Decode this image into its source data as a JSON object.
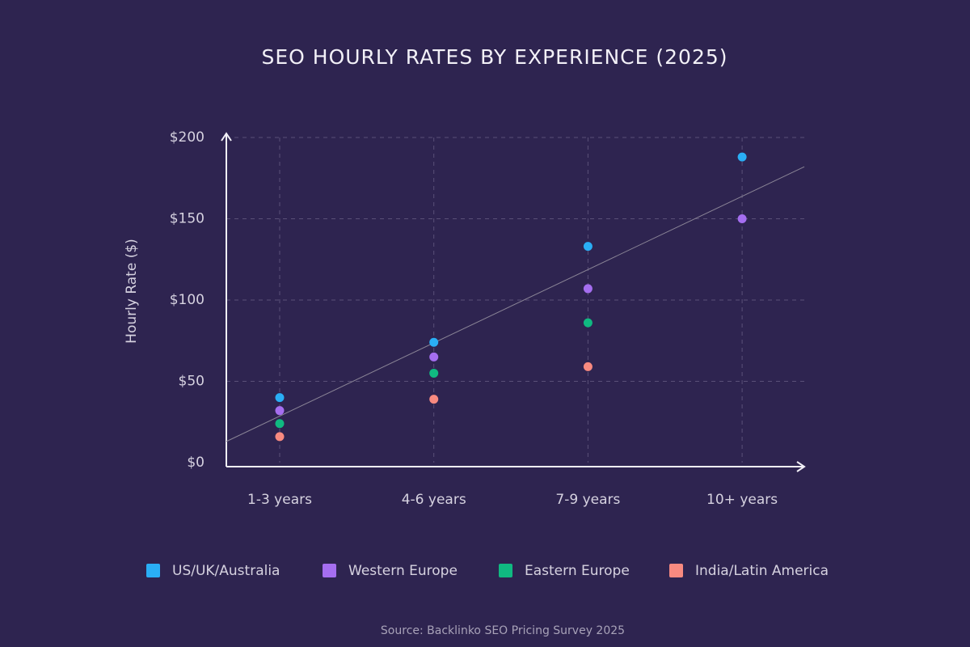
{
  "chart_data": {
    "type": "scatter",
    "title": "SEO HOURLY RATES BY EXPERIENCE (2025)",
    "y_label": "Hourly Rate ($)",
    "source": "Source: Backlinko SEO Pricing Survey 2025",
    "categories": [
      "1-3 years",
      "4-6 years",
      "7-9 years",
      "10+ years"
    ],
    "series": [
      {
        "name": "US/UK/Australia",
        "color": "#2aaef5",
        "values": [
          40,
          74,
          133,
          188
        ]
      },
      {
        "name": "Western Europe",
        "color": "#a56ef0",
        "values": [
          32,
          65,
          107,
          150
        ]
      },
      {
        "name": "Eastern Europe",
        "color": "#10b981",
        "values": [
          24,
          55,
          86,
          null
        ]
      },
      {
        "name": "India/Latin America",
        "color": "#f88a80",
        "values": [
          16,
          39,
          59,
          null
        ]
      }
    ],
    "trend_line": {
      "color": "#8a8496",
      "values": [
        13,
        182
      ]
    },
    "ylim": [
      0,
      200
    ],
    "yticks": [
      {
        "value": 0,
        "label": "$0"
      },
      {
        "value": 50,
        "label": "$50"
      },
      {
        "value": 100,
        "label": "$100"
      },
      {
        "value": 150,
        "label": "$150"
      },
      {
        "value": 200,
        "label": "$200"
      }
    ],
    "grid": true
  }
}
